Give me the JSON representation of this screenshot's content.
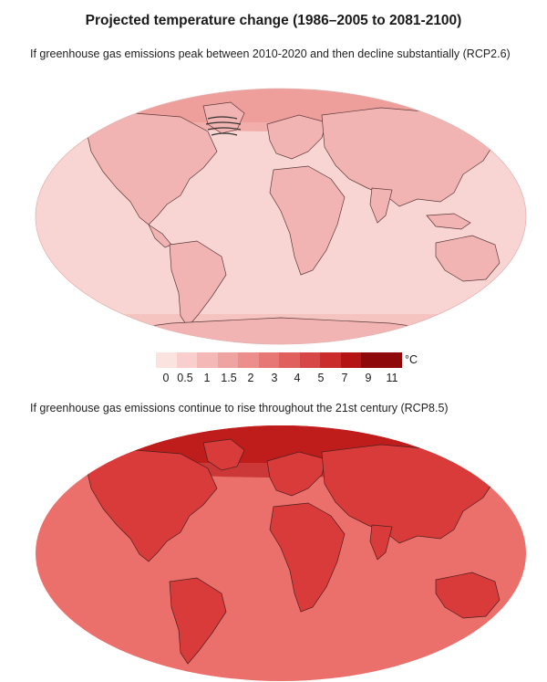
{
  "title": "Projected temperature change (1986–2005 to 2081-2100)",
  "scenarios": [
    {
      "caption": "If greenhouse gas emissions peak between 2010-2020 and then decline substantially (RCP2.6)",
      "base_color": "#f6c4c3",
      "ocean_color": "#f8d5d3",
      "land_color": "#f2b3b3"
    },
    {
      "caption": "If greenhouse gas emissions continue to rise throughout the 21st century (RCP8.5)",
      "base_color": "#e6504f",
      "ocean_color": "#eb6f6b",
      "land_color": "#d93a3a"
    }
  ],
  "legend": {
    "unit": "°C",
    "labels": [
      "0",
      "0.5",
      "1",
      "1.5",
      "2",
      "3",
      "4",
      "5",
      "7",
      "9",
      "11"
    ],
    "colors": [
      "#fbe3e0",
      "#f8cfcc",
      "#f4b9b6",
      "#f0a4a1",
      "#ec8e8b",
      "#e67775",
      "#e0605e",
      "#d84747",
      "#ca2b2b",
      "#b51414",
      "#8e0a0a"
    ]
  }
}
